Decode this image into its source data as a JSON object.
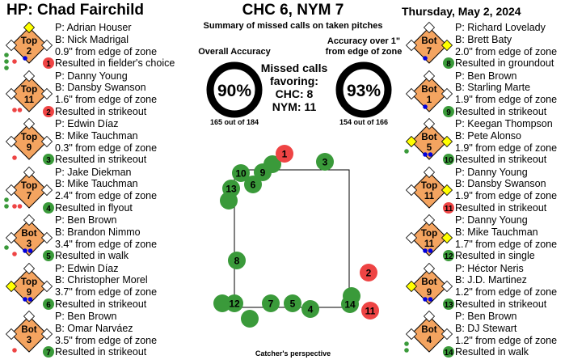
{
  "header": {
    "umpire": "HP: Chad Fairchild",
    "score": "CHC 6, NYM 7",
    "subtitle": "Summary of missed calls on taken pitches",
    "date": "Thursday, May 2, 2024"
  },
  "accuracy": {
    "overall_title": "Overall Accuracy",
    "overall_pct": "90%",
    "overall_value": 0.9,
    "overall_count": "165 out of 184",
    "over1_title_line1": "Accuracy over 1\"",
    "over1_title_line2": "from edge of zone",
    "over1_pct": "93%",
    "over1_value": 0.93,
    "over1_count": "154 out of 166"
  },
  "favor": {
    "line1": "Missed calls",
    "line2": "favoring:",
    "line3": "CHC: 8",
    "line4": "NYM: 11"
  },
  "caption": "Catcher's perspective",
  "colors": {
    "diamond": "#F4A460",
    "favor_green": "#3A9A3A",
    "favor_red": "#EE4444",
    "runner_base": "#FFFF00",
    "ball_blue": "#0000DD"
  },
  "calls": [
    {
      "half": "Top",
      "inning": "2",
      "num": "1",
      "color": "red",
      "pitcher": "P: Adrian Houser",
      "batter": "B: Nick Madrigal",
      "dist": "0.9\" from edge of zone",
      "result": "Resulted in fielder's choice",
      "bases": [
        false,
        true,
        false
      ],
      "balls": 1,
      "strikes": 1,
      "outs": 3
    },
    {
      "half": "Top",
      "inning": "11",
      "num": "2",
      "color": "red",
      "pitcher": "P: Danny Young",
      "batter": "B: Dansby Swanson",
      "dist": "1.6\" from edge of zone",
      "result": "Resulted in strikeout",
      "bases": [
        false,
        false,
        false
      ],
      "balls": 0,
      "strikes": 2,
      "outs": 0
    },
    {
      "half": "Top",
      "inning": "9",
      "num": "3",
      "color": "green",
      "pitcher": "P: Edwin Díaz",
      "batter": "B: Mike Tauchman",
      "dist": "0.3\" from edge of zone",
      "result": "Resulted in strikeout",
      "bases": [
        false,
        false,
        false
      ],
      "balls": 0,
      "strikes": 1,
      "outs": 0
    },
    {
      "half": "Top",
      "inning": "7",
      "num": "4",
      "color": "green",
      "pitcher": "P: Jake Diekman",
      "batter": "B: Mike Tauchman",
      "dist": "2.4\" from edge of zone",
      "result": "Resulted in flyout",
      "bases": [
        false,
        false,
        false
      ],
      "balls": 0,
      "strikes": 2,
      "outs": 2
    },
    {
      "half": "Bot",
      "inning": "3",
      "num": "5",
      "color": "green",
      "pitcher": "P: Ben Brown",
      "batter": "B: Brandon Nimmo",
      "dist": "3.4\" from edge of zone",
      "result": "Resulted in walk",
      "bases": [
        false,
        false,
        false
      ],
      "balls": 2,
      "strikes": 1,
      "outs": 1
    },
    {
      "half": "Top",
      "inning": "9",
      "num": "6",
      "color": "green",
      "pitcher": "P: Edwin Díaz",
      "batter": "B: Christopher Morel",
      "dist": "3.7\" from edge of zone",
      "result": "Resulted in strikeout",
      "bases": [
        false,
        false,
        true
      ],
      "balls": 2,
      "strikes": 0,
      "outs": 0
    },
    {
      "half": "Bot",
      "inning": "3",
      "num": "7",
      "color": "green",
      "pitcher": "P: Ben Brown",
      "batter": "B: Omar Narváez",
      "dist": "3.5\" from edge of zone",
      "result": "Resulted in strikeout",
      "bases": [
        false,
        false,
        false
      ],
      "balls": 0,
      "strikes": 1,
      "outs": 0
    },
    {
      "half": "Bot",
      "inning": "7",
      "num": "8",
      "color": "green",
      "pitcher": "P: Richard Lovelady",
      "batter": "B: Brett Baty",
      "dist": "2.0\" from edge of zone",
      "result": "Resulted in groundout",
      "bases": [
        true,
        false,
        false
      ],
      "balls": 1,
      "strikes": 0,
      "outs": 0
    },
    {
      "half": "Bot",
      "inning": "1",
      "num": "9",
      "color": "green",
      "pitcher": "P: Ben Brown",
      "batter": "B: Starling Marte",
      "dist": "1.9\" from edge of zone",
      "result": "Resulted in strikeout",
      "bases": [
        false,
        false,
        false
      ],
      "balls": 1,
      "strikes": 0,
      "outs": 0
    },
    {
      "half": "Bot",
      "inning": "5",
      "num": "10",
      "color": "green",
      "pitcher": "P: Keegan Thompson",
      "batter": "B: Pete Alonso",
      "dist": "1.9\" from edge of zone",
      "result": "Resulted in strikeout",
      "bases": [
        true,
        false,
        true
      ],
      "balls": 2,
      "strikes": 0,
      "outs": 1
    },
    {
      "half": "Top",
      "inning": "11",
      "num": "11",
      "color": "red",
      "pitcher": "P: Danny Young",
      "batter": "B: Dansby Swanson",
      "dist": "1.9\" from edge of zone",
      "result": "Resulted in strikeout",
      "bases": [
        true,
        false,
        false
      ],
      "balls": 0,
      "strikes": 0,
      "outs": 0
    },
    {
      "half": "Top",
      "inning": "11",
      "num": "12",
      "color": "green",
      "pitcher": "P: Danny Young",
      "batter": "B: Mike Tauchman",
      "dist": "1.7\" from edge of zone",
      "result": "Resulted in single",
      "bases": [
        true,
        false,
        false
      ],
      "balls": 2,
      "strikes": 0,
      "outs": 0
    },
    {
      "half": "Bot",
      "inning": "9",
      "num": "13",
      "color": "green",
      "pitcher": "P: Héctor Neris",
      "batter": "B: J.D. Martinez",
      "dist": "1.2\" from edge of zone",
      "result": "Resulted in strikeout",
      "bases": [
        false,
        false,
        true
      ],
      "balls": 2,
      "strikes": 0,
      "outs": 0
    },
    {
      "half": "Bot",
      "inning": "4",
      "num": "14",
      "color": "green",
      "pitcher": "P: Ben Brown",
      "batter": "B: DJ Stewart",
      "dist": "1.2\" from edge of zone",
      "result": "Resulted in walk",
      "bases": [
        false,
        false,
        false
      ],
      "balls": 0,
      "strikes": 0,
      "outs": 2
    }
  ],
  "pitches": [
    {
      "num": "1",
      "color": "red"
    },
    {
      "num": "2",
      "color": "red"
    },
    {
      "num": "3",
      "color": "green"
    },
    {
      "num": "4",
      "color": "green"
    },
    {
      "num": "5",
      "color": "green"
    },
    {
      "num": "6",
      "color": "green"
    },
    {
      "num": "7",
      "color": "green"
    },
    {
      "num": "8",
      "color": "green"
    },
    {
      "num": "9",
      "color": "green"
    },
    {
      "num": "10",
      "color": "green"
    },
    {
      "num": "11",
      "color": "red"
    },
    {
      "num": "12",
      "color": "green"
    },
    {
      "num": "13",
      "color": "green"
    },
    {
      "num": "14",
      "color": "green"
    }
  ]
}
